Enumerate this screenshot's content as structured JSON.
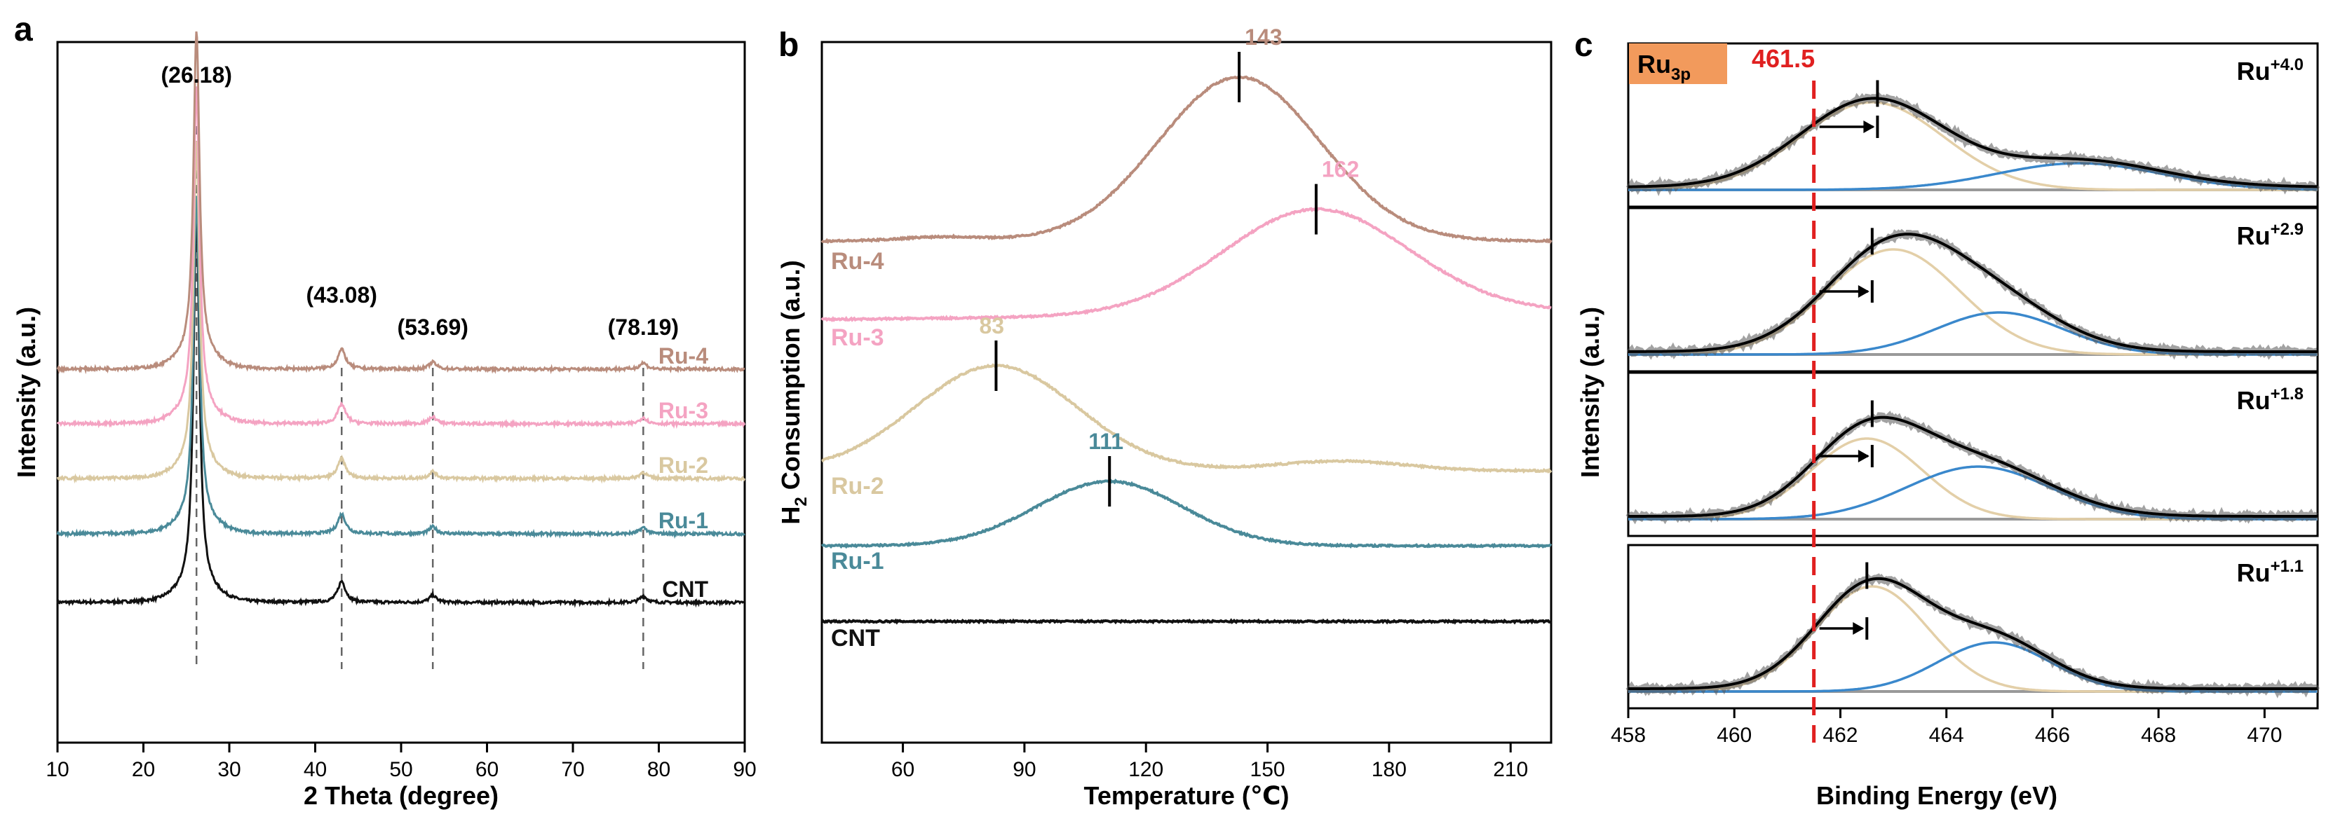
{
  "chart_data": [
    {
      "panel": "a",
      "type": "line",
      "xlabel": "2 Theta (degree)",
      "ylabel": "Intensity (a.u.)",
      "xlim": [
        10,
        90
      ],
      "xticks": [
        10,
        20,
        30,
        40,
        50,
        60,
        70,
        80,
        90
      ],
      "peak_labels": [
        {
          "x": 26.18,
          "text": "(26.18)"
        },
        {
          "x": 43.08,
          "text": "(43.08)"
        },
        {
          "x": 53.69,
          "text": "(53.69)"
        },
        {
          "x": 78.19,
          "text": "(78.19)"
        }
      ],
      "series": [
        {
          "name": "CNT",
          "color": "#111111"
        },
        {
          "name": "Ru-1",
          "color": "#4a8a99"
        },
        {
          "name": "Ru-2",
          "color": "#d9c8a0"
        },
        {
          "name": "Ru-3",
          "color": "#f4a3c2"
        },
        {
          "name": "Ru-4",
          "color": "#b98c7c"
        }
      ]
    },
    {
      "panel": "b",
      "type": "line",
      "xlabel": "Temperature (℃)",
      "ylabel": "H2 Consumption (a.u.)",
      "ylabel_main": "H",
      "ylabel_sub": "2",
      "ylabel_rest": " Consumption (a.u.)",
      "xlim": [
        40,
        220
      ],
      "xticks": [
        60,
        90,
        120,
        150,
        180,
        210
      ],
      "series": [
        {
          "name": "CNT",
          "color": "#111111",
          "peak": null
        },
        {
          "name": "Ru-1",
          "color": "#4a8a99",
          "peak": 111,
          "peak_label": "111"
        },
        {
          "name": "Ru-2",
          "color": "#d9c8a0",
          "peak": 83,
          "peak_label": "83"
        },
        {
          "name": "Ru-3",
          "color": "#f4a3c2",
          "peak": 162,
          "peak_label": "162"
        },
        {
          "name": "Ru-4",
          "color": "#b98c7c",
          "peak": 143,
          "peak_label": "143"
        }
      ]
    },
    {
      "panel": "c",
      "type": "line",
      "xlabel": "Binding Energy (eV)",
      "ylabel": "Intensity (a.u.)",
      "xlim": [
        458,
        471
      ],
      "xticks": [
        458,
        460,
        462,
        464,
        466,
        468,
        470
      ],
      "reference_line": {
        "x": 461.5,
        "label": "461.5",
        "color": "#e02020"
      },
      "badge": {
        "main": "Ru",
        "sub": "3p",
        "color": "#f29a5c"
      },
      "component_colors": {
        "fit": "#000000",
        "low": "#e3cfa8",
        "high": "#3a88cc",
        "baseline": "#999999"
      },
      "subpanels": [
        {
          "label_main": "Ru",
          "label_sup": "+4.0",
          "peak": 462.7
        },
        {
          "label_main": "Ru",
          "label_sup": "+2.9",
          "peak": 462.6
        },
        {
          "label_main": "Ru",
          "label_sup": "+1.8",
          "peak": 462.6
        },
        {
          "label_main": "Ru",
          "label_sup": "+1.1",
          "peak": 462.5
        }
      ]
    }
  ],
  "panel_letters": [
    "a",
    "b",
    "c"
  ]
}
